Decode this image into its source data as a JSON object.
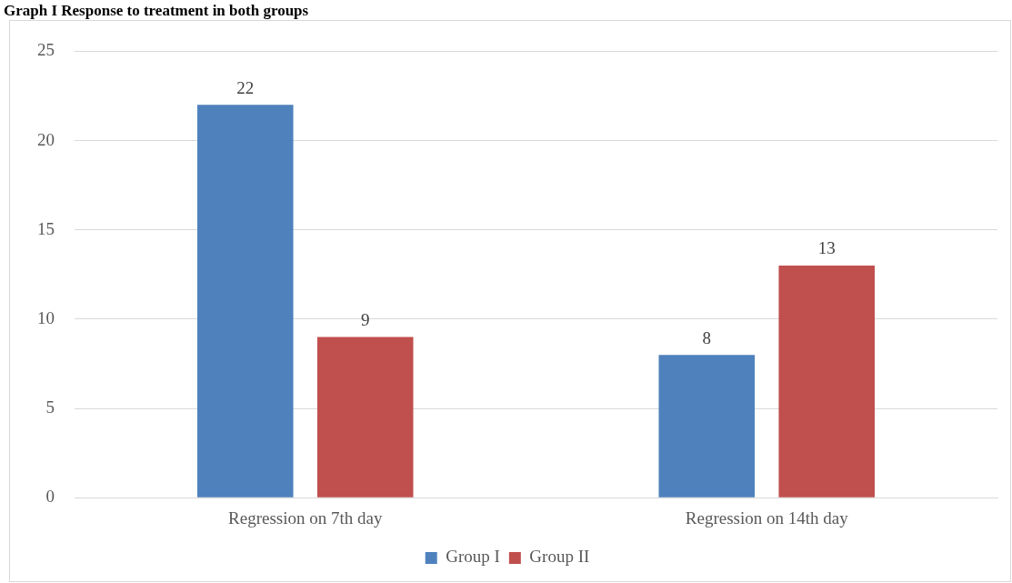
{
  "chart_data": {
    "type": "bar",
    "title": "Graph I Response to treatment in both groups",
    "categories": [
      "Regression on 7th day",
      "Regression on 14th day"
    ],
    "series": [
      {
        "name": "Group I",
        "color": "#4f81bd",
        "values": [
          22,
          8
        ]
      },
      {
        "name": "Group II",
        "color": "#c0504d",
        "values": [
          9,
          13
        ]
      }
    ],
    "ylim": [
      0,
      25
    ],
    "yticks": [
      0,
      5,
      10,
      15,
      20,
      25
    ],
    "grid": "y",
    "legend": "bottom",
    "data_labels": true
  }
}
